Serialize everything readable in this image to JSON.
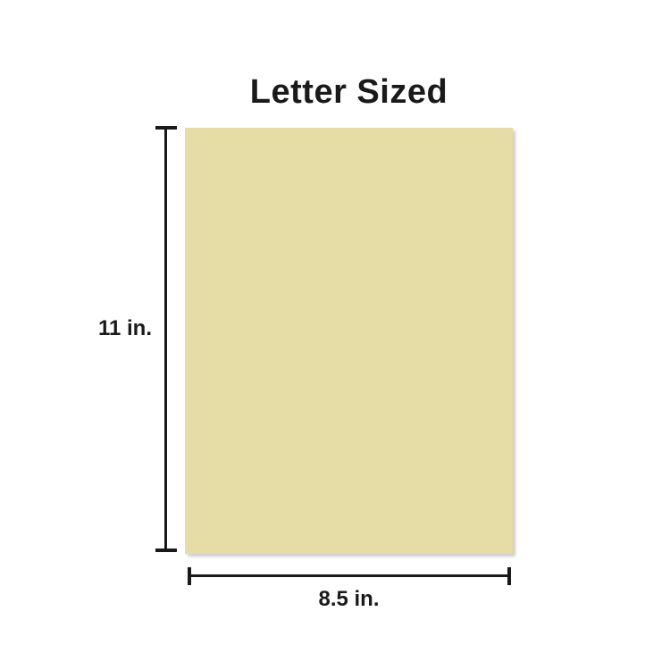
{
  "diagram": {
    "title": "Letter Sized",
    "paper": {
      "name": "letter-sized-sheet"
    },
    "dimensions": {
      "height_label": "11 in.",
      "width_label": "8.5 in.",
      "height_value": 11,
      "width_value": 8.5,
      "unit": "in."
    }
  },
  "colors": {
    "paper": "#e6dca5",
    "line": "#1a1a1a",
    "background": "#ffffff"
  }
}
